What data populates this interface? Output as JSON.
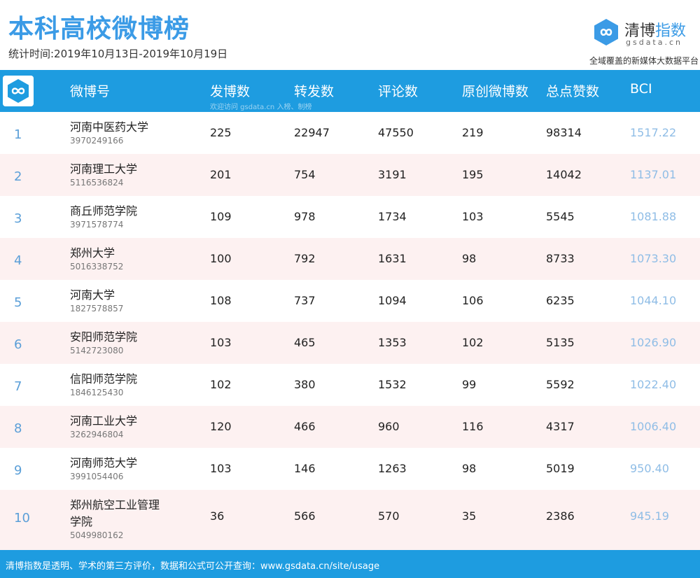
{
  "header": {
    "title": "本科高校微博榜",
    "period": "统计时间:2019年10月13日-2019年10月19日",
    "brand_name_plain": "清博",
    "brand_name_highlight": "指数",
    "brand_domain": "gsdata.cn",
    "brand_tagline": "全域覆盖的新媒体大数据平台"
  },
  "table": {
    "columns": [
      "微博号",
      "发博数",
      "转发数",
      "评论数",
      "原创微博数",
      "总点赞数",
      "BCI"
    ],
    "watermark": "欢迎访问 gsdata.cn 入榜、制榜",
    "rows": [
      {
        "rank": "1",
        "name": "河南中医药大学",
        "id": "3970249166",
        "posts": "225",
        "reposts": "22947",
        "comments": "47550",
        "original": "219",
        "likes": "98314",
        "bci": "1517.22"
      },
      {
        "rank": "2",
        "name": "河南理工大学",
        "id": "5116536824",
        "posts": "201",
        "reposts": "754",
        "comments": "3191",
        "original": "195",
        "likes": "14042",
        "bci": "1137.01"
      },
      {
        "rank": "3",
        "name": "商丘师范学院",
        "id": "3971578774",
        "posts": "109",
        "reposts": "978",
        "comments": "1734",
        "original": "103",
        "likes": "5545",
        "bci": "1081.88"
      },
      {
        "rank": "4",
        "name": "郑州大学",
        "id": "5016338752",
        "posts": "100",
        "reposts": "792",
        "comments": "1631",
        "original": "98",
        "likes": "8733",
        "bci": "1073.30"
      },
      {
        "rank": "5",
        "name": "河南大学",
        "id": "1827578857",
        "posts": "108",
        "reposts": "737",
        "comments": "1094",
        "original": "106",
        "likes": "6235",
        "bci": "1044.10"
      },
      {
        "rank": "6",
        "name": "安阳师范学院",
        "id": "5142723080",
        "posts": "103",
        "reposts": "465",
        "comments": "1353",
        "original": "102",
        "likes": "5135",
        "bci": "1026.90"
      },
      {
        "rank": "7",
        "name": "信阳师范学院",
        "id": "1846125430",
        "posts": "102",
        "reposts": "380",
        "comments": "1532",
        "original": "99",
        "likes": "5592",
        "bci": "1022.40"
      },
      {
        "rank": "8",
        "name": "河南工业大学",
        "id": "3262946804",
        "posts": "120",
        "reposts": "466",
        "comments": "960",
        "original": "116",
        "likes": "4317",
        "bci": "1006.40"
      },
      {
        "rank": "9",
        "name": "河南师范大学",
        "id": "3991054406",
        "posts": "103",
        "reposts": "146",
        "comments": "1263",
        "original": "98",
        "likes": "5019",
        "bci": "950.40"
      },
      {
        "rank": "10",
        "name": "郑州航空工业管理学院",
        "id": "5049980162",
        "posts": "36",
        "reposts": "566",
        "comments": "570",
        "original": "35",
        "likes": "2386",
        "bci": "945.19"
      }
    ]
  },
  "footer": {
    "text": "清博指数是透明、学术的第三方评价，数据和公式可公开查询：www.gsdata.cn/site/usage"
  },
  "icons": {
    "brand": "infinity-logo-icon",
    "header": "infinity-logo-icon"
  },
  "colors": {
    "accent": "#1e9ce0",
    "title": "#3b9be6",
    "row_alt": "#fdf1f1",
    "rank": "#5b9fd8",
    "bci": "#8fbde6"
  }
}
